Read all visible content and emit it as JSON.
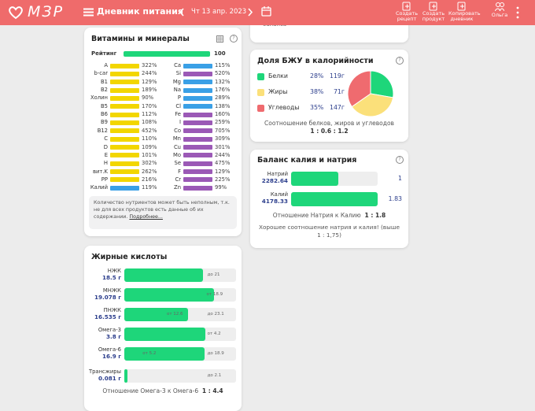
{
  "header": {
    "logo": "МЗР",
    "title": "Дневник питания",
    "date": "Чт 13 апр. 2023",
    "actions": [
      "Создать рецепт",
      "Создать продукт",
      "Копировать дневник",
      "Ольга"
    ]
  },
  "partial_card": {
    "text": "баланса"
  },
  "vitamins": {
    "title": "Витамины и минералы",
    "rating_label": "Рейтинг",
    "rating": 100,
    "left": [
      {
        "name": "A",
        "value": "322%",
        "color": "#f2d600"
      },
      {
        "name": "b-car",
        "value": "244%",
        "color": "#f2d600"
      },
      {
        "name": "B1",
        "value": "129%",
        "color": "#f2d600"
      },
      {
        "name": "B2",
        "value": "189%",
        "color": "#f2d600"
      },
      {
        "name": "Холин",
        "value": "90%",
        "color": "#f2d600"
      },
      {
        "name": "B5",
        "value": "170%",
        "color": "#f2d600"
      },
      {
        "name": "B6",
        "value": "112%",
        "color": "#f2d600"
      },
      {
        "name": "B9",
        "value": "108%",
        "color": "#f2d600"
      },
      {
        "name": "B12",
        "value": "452%",
        "color": "#f2d600"
      },
      {
        "name": "C",
        "value": "110%",
        "color": "#f2d600"
      },
      {
        "name": "D",
        "value": "109%",
        "color": "#f2d600"
      },
      {
        "name": "E",
        "value": "101%",
        "color": "#f2d600"
      },
      {
        "name": "H",
        "value": "302%",
        "color": "#f2d600"
      },
      {
        "name": "вит.K",
        "value": "262%",
        "color": "#f2d600"
      },
      {
        "name": "PP",
        "value": "216%",
        "color": "#f2d600"
      },
      {
        "name": "Калий",
        "value": "119%",
        "color": "#3aa0e6"
      }
    ],
    "right": [
      {
        "name": "Ca",
        "value": "115%",
        "color": "#3aa0e6"
      },
      {
        "name": "Si",
        "value": "520%",
        "color": "#9b59b6"
      },
      {
        "name": "Mg",
        "value": "132%",
        "color": "#3aa0e6"
      },
      {
        "name": "Na",
        "value": "176%",
        "color": "#3aa0e6"
      },
      {
        "name": "P",
        "value": "289%",
        "color": "#3aa0e6"
      },
      {
        "name": "Cl",
        "value": "138%",
        "color": "#3aa0e6"
      },
      {
        "name": "Fe",
        "value": "160%",
        "color": "#9b59b6"
      },
      {
        "name": "I",
        "value": "259%",
        "color": "#9b59b6"
      },
      {
        "name": "Co",
        "value": "705%",
        "color": "#9b59b6"
      },
      {
        "name": "Mn",
        "value": "309%",
        "color": "#9b59b6"
      },
      {
        "name": "Cu",
        "value": "301%",
        "color": "#9b59b6"
      },
      {
        "name": "Mo",
        "value": "244%",
        "color": "#9b59b6"
      },
      {
        "name": "Se",
        "value": "475%",
        "color": "#9b59b6"
      },
      {
        "name": "F",
        "value": "129%",
        "color": "#9b59b6"
      },
      {
        "name": "Cr",
        "value": "225%",
        "color": "#9b59b6"
      },
      {
        "name": "Zn",
        "value": "99%",
        "color": "#9b59b6"
      }
    ],
    "note": "Количество нутриентов может быть неполным, т.к. не для всех продуктов есть данные об их содержании.",
    "note_link": "Подробнее..."
  },
  "fatty_acids": {
    "title": "Жирные кислоты",
    "rows": [
      {
        "name": "НЖК",
        "value": 18.5,
        "value_label": "18.5 г",
        "limits": [
          {
            "value": 21,
            "label": "до 21"
          }
        ]
      },
      {
        "name": "МНЖК",
        "value": 19.078,
        "value_label": "19.078 г",
        "limits": [
          {
            "value": 18.9,
            "label": "от 18.9"
          }
        ]
      },
      {
        "name": "ПНЖК",
        "value": 16.535,
        "value_label": "16.535 г",
        "limits": [
          {
            "value": 12.6,
            "label": "от 12.6"
          },
          {
            "value": 23.1,
            "label": "до 23.1"
          }
        ]
      },
      {
        "name": "Омега-3",
        "value": 3.8,
        "value_label": "3.8 г",
        "limits": [
          {
            "value": 4.2,
            "label": "от 4.2"
          }
        ]
      },
      {
        "name": "Омега-6",
        "value": 16.9,
        "value_label": "16.9 г",
        "limits": [
          {
            "value": 5.2,
            "label": "от 5.2"
          },
          {
            "value": 18.9,
            "label": "до 18.9"
          }
        ]
      },
      {
        "name": "Трансжиры",
        "value": 0.081,
        "value_label": "0.081 г",
        "limits": [
          {
            "value": 2.1,
            "label": "до 2.1"
          }
        ]
      }
    ],
    "ratio_label": "Отношение Омега-3 к Омега-6",
    "ratio": "1 : 4.4"
  },
  "bju": {
    "title": "Доля БЖУ в калорийности",
    "rows": [
      {
        "name": "Белки",
        "percent": 28,
        "percent_label": "28%",
        "grams": "119г",
        "color": "#1ed67a"
      },
      {
        "name": "Жиры",
        "percent": 38,
        "percent_label": "38%",
        "grams": "71г",
        "color": "#fbe07a"
      },
      {
        "name": "Углеводы",
        "percent": 35,
        "percent_label": "35%",
        "grams": "147г",
        "color": "#ef6b6f"
      }
    ],
    "ratio_label": "Соотношение белков, жиров и углеводов",
    "ratio": "1 : 0.6 : 1.2"
  },
  "potassium_sodium": {
    "title": "Баланс калия и натрия",
    "rows": [
      {
        "name": "Натрий",
        "value": 2282.64,
        "ratio": "1"
      },
      {
        "name": "Калий",
        "value": 4178.33,
        "ratio": "1.83"
      }
    ],
    "ratio_label": "Отношение Натрия к Калию",
    "ratio": "1 : 1.8",
    "verdict": "Хорошее соотношение натрия и калия! (выше 1 : 1,75)"
  }
}
